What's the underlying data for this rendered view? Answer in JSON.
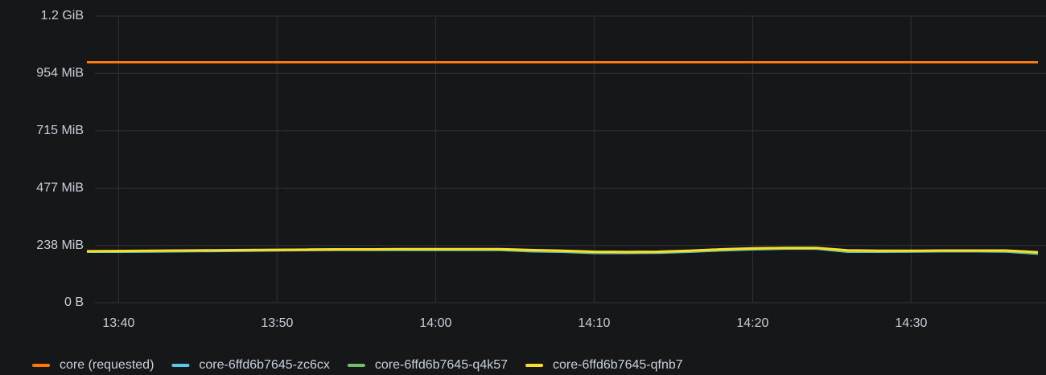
{
  "chart_data": {
    "type": "line",
    "x": [
      "13:38",
      "13:40",
      "13:42",
      "13:44",
      "13:46",
      "13:48",
      "13:50",
      "13:52",
      "13:54",
      "13:56",
      "13:58",
      "14:00",
      "14:02",
      "14:04",
      "14:06",
      "14:08",
      "14:10",
      "14:12",
      "14:14",
      "14:16",
      "14:18",
      "14:20",
      "14:22",
      "14:24",
      "14:26",
      "14:28",
      "14:30",
      "14:32",
      "14:34",
      "14:36",
      "14:38"
    ],
    "xlim": [
      "13:38",
      "14:38"
    ],
    "xticks": [
      "13:40",
      "13:50",
      "14:00",
      "14:10",
      "14:20",
      "14:30"
    ],
    "ylim": [
      0,
      1192.1
    ],
    "yticks": [
      {
        "value": 0,
        "label": "0 B"
      },
      {
        "value": 238.4,
        "label": "238 MiB"
      },
      {
        "value": 476.8,
        "label": "477 MiB"
      },
      {
        "value": 715.3,
        "label": "715 MiB"
      },
      {
        "value": 953.7,
        "label": "954 MiB"
      },
      {
        "value": 1192.1,
        "label": "1.2 GiB"
      }
    ],
    "grid": true,
    "legend": "bottom",
    "series": [
      {
        "name": "core (requested)",
        "color": "#ff780a",
        "values": [
          1000,
          1000,
          1000,
          1000,
          1000,
          1000,
          1000,
          1000,
          1000,
          1000,
          1000,
          1000,
          1000,
          1000,
          1000,
          1000,
          1000,
          1000,
          1000,
          1000,
          1000,
          1000,
          1000,
          1000,
          1000,
          1000,
          1000,
          1000,
          1000,
          1000,
          1000
        ]
      },
      {
        "name": "core-6ffd6b7645-zc6cx",
        "color": "#5ac8e8",
        "values": [
          212,
          212,
          213,
          214,
          215,
          216,
          218,
          219,
          220,
          220,
          220,
          220,
          220,
          220,
          214,
          212,
          207,
          207,
          208,
          212,
          218,
          222,
          225,
          225,
          212,
          212,
          213,
          214,
          214,
          213,
          204
        ]
      },
      {
        "name": "core-6ffd6b7645-q4k57",
        "color": "#73bf69",
        "values": [
          213,
          214,
          215,
          216,
          217,
          218,
          219,
          220,
          221,
          221,
          222,
          222,
          222,
          221,
          216,
          214,
          209,
          209,
          210,
          214,
          220,
          224,
          226,
          226,
          214,
          214,
          215,
          216,
          216,
          215,
          206
        ]
      },
      {
        "name": "core-6ffd6b7645-qfnb7",
        "color": "#fade2a",
        "values": [
          214,
          215,
          216,
          217,
          218,
          219,
          220,
          221,
          222,
          222,
          223,
          223,
          223,
          223,
          219,
          216,
          212,
          211,
          212,
          216,
          222,
          226,
          228,
          228,
          218,
          216,
          216,
          217,
          217,
          217,
          210
        ]
      }
    ]
  }
}
